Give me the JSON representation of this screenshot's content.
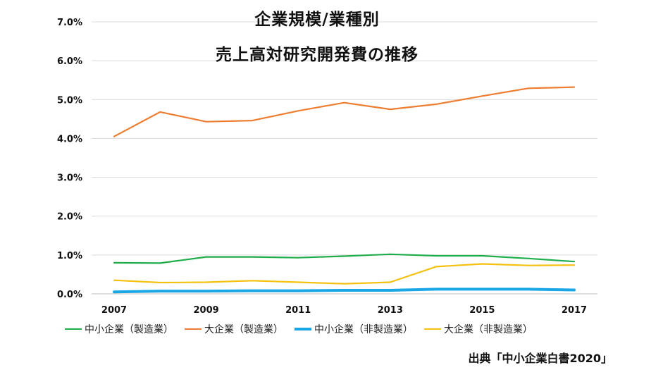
{
  "chart_data": {
    "type": "line",
    "title_lines": [
      "企業規模/業種別",
      "売上高対研究開発費の推移"
    ],
    "x": [
      2007,
      2008,
      2009,
      2010,
      2011,
      2012,
      2013,
      2014,
      2015,
      2016,
      2017
    ],
    "x_tick_labels": [
      "2007",
      "2009",
      "2011",
      "2013",
      "2015",
      "2017"
    ],
    "x_tick_values": [
      2007,
      2009,
      2011,
      2013,
      2015,
      2017
    ],
    "y_tick_labels": [
      "0.0%",
      "1.0%",
      "2.0%",
      "3.0%",
      "4.0%",
      "5.0%",
      "6.0%",
      "7.0%"
    ],
    "y_tick_values": [
      0,
      1,
      2,
      3,
      4,
      5,
      6,
      7
    ],
    "ylim": [
      0,
      7
    ],
    "grid": true,
    "legend_position": "bottom",
    "xlabel": "",
    "ylabel": "",
    "series": [
      {
        "name": "中小企業（製造業）",
        "color": "#1fad4b",
        "values": [
          0.8,
          0.79,
          0.95,
          0.95,
          0.93,
          0.97,
          1.02,
          0.98,
          0.98,
          0.91,
          0.83
        ]
      },
      {
        "name": "大企業（製造業）",
        "color": "#ed7d31",
        "values": [
          4.05,
          4.68,
          4.43,
          4.46,
          4.71,
          4.92,
          4.75,
          4.88,
          5.09,
          5.29,
          5.32
        ]
      },
      {
        "name": "中小企業（非製造業）",
        "color": "#1aa7e6",
        "values": [
          0.05,
          0.07,
          0.07,
          0.08,
          0.08,
          0.09,
          0.09,
          0.12,
          0.12,
          0.12,
          0.1
        ]
      },
      {
        "name": "大企業（非製造業）",
        "color": "#f5c00e",
        "values": [
          0.35,
          0.29,
          0.3,
          0.34,
          0.3,
          0.26,
          0.3,
          0.7,
          0.77,
          0.73,
          0.74
        ]
      }
    ],
    "source": "出典「中小企業白書2020」"
  }
}
